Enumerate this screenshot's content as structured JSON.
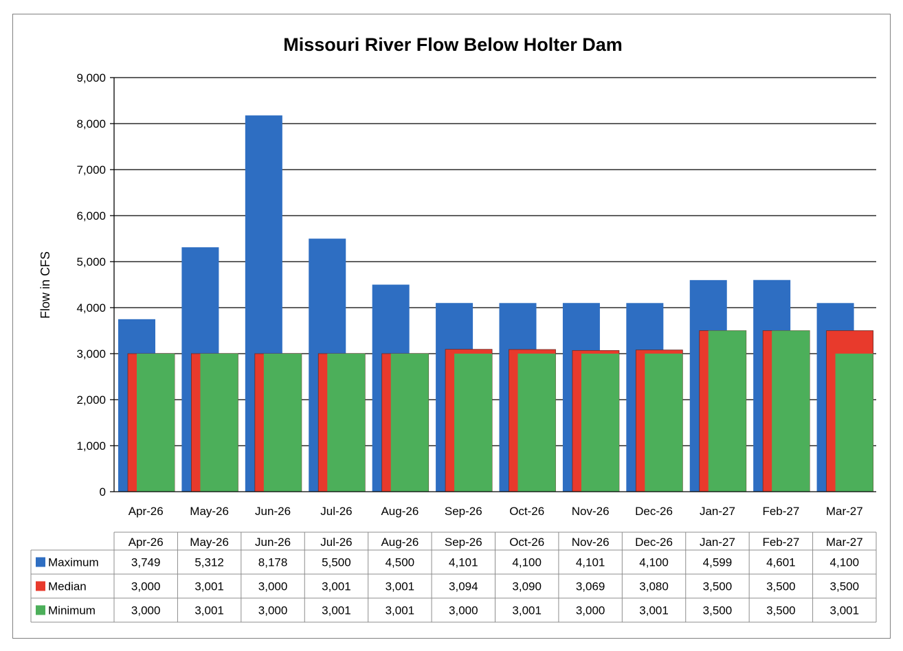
{
  "chart_data": {
    "type": "bar",
    "title": "Missouri River Flow Below Holter Dam",
    "ylabel": "Flow in CFS",
    "xlabel": "",
    "ylim": [
      0,
      9000
    ],
    "yticks": [
      "0",
      "1,000",
      "2,000",
      "3,000",
      "4,000",
      "5,000",
      "6,000",
      "7,000",
      "8,000",
      "9,000"
    ],
    "grid": true,
    "legend": "data-table-bottom",
    "categories": [
      "Apr-26",
      "May-26",
      "Jun-26",
      "Jul-26",
      "Aug-26",
      "Sep-26",
      "Oct-26",
      "Nov-26",
      "Dec-26",
      "Jan-27",
      "Feb-27",
      "Mar-27"
    ],
    "series": [
      {
        "name": "Maximum",
        "color": "#2e6ec2",
        "values": [
          3749,
          5312,
          8178,
          5500,
          4500,
          4101,
          4100,
          4101,
          4100,
          4599,
          4601,
          4100
        ],
        "labels": [
          "3,749",
          "5,312",
          "8,178",
          "5,500",
          "4,500",
          "4,101",
          "4,100",
          "4,101",
          "4,100",
          "4,599",
          "4,601",
          "4,100"
        ]
      },
      {
        "name": "Median",
        "color": "#e83a2c",
        "values": [
          3000,
          3001,
          3000,
          3001,
          3001,
          3094,
          3090,
          3069,
          3080,
          3500,
          3500,
          3500
        ],
        "labels": [
          "3,000",
          "3,001",
          "3,000",
          "3,001",
          "3,001",
          "3,094",
          "3,090",
          "3,069",
          "3,080",
          "3,500",
          "3,500",
          "3,500"
        ]
      },
      {
        "name": "Minimum",
        "color": "#4caf5a",
        "values": [
          3000,
          3001,
          3000,
          3001,
          3001,
          3000,
          3001,
          3000,
          3001,
          3500,
          3500,
          3001
        ],
        "labels": [
          "3,000",
          "3,001",
          "3,000",
          "3,001",
          "3,001",
          "3,000",
          "3,001",
          "3,000",
          "3,001",
          "3,500",
          "3,500",
          "3,001"
        ]
      }
    ]
  }
}
